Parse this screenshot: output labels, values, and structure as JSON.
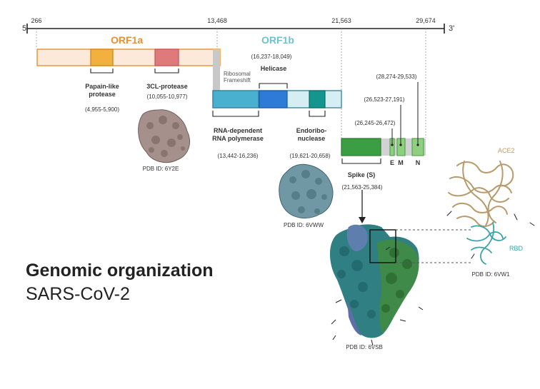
{
  "genome": {
    "five_prime": "5'",
    "three_prime": "3'",
    "ticks": [
      "266",
      "13,468",
      "21,563",
      "29,674"
    ]
  },
  "orf1a": {
    "label": "ORF1a",
    "color": "#e8912e",
    "fill": "#fde9da",
    "papain": {
      "name": "Papain-like protease",
      "name_line1": "Papain-like",
      "name_line2": "protease",
      "range": "(4,955-5,900)",
      "color": "#f2b13f"
    },
    "clpro": {
      "name": "3CL-protease",
      "range": "(10,055-10,977)",
      "color": "#e07a7a"
    },
    "pdb": "PDB ID: 6Y2E"
  },
  "orf1b": {
    "label": "ORF1b",
    "color": "#6ec2cf",
    "ribosomal_line1": "Ribosomal",
    "ribosomal_line2": "Frameshift",
    "helicase": {
      "name": "Helicase",
      "range": "(16,237-18,049)",
      "color": "#2d7bd6"
    },
    "rdrp": {
      "name_line1": "RNA-dependent",
      "name_line2": "RNA polymerase",
      "range": "(13,442-16,236)",
      "color": "#4ab0d0"
    },
    "endo": {
      "name_line1": "Endoribo-",
      "name_line2": "nuclease",
      "range": "(19,621-20,658)",
      "color": "#14968e"
    },
    "pdb": "PDB ID: 6VWW"
  },
  "structural": {
    "spike": {
      "name": "Spike (S)",
      "range": "(21,563-25,384)",
      "color": "#3c9e42"
    },
    "e": {
      "name": "E",
      "range": "(26,245-26,472)"
    },
    "m": {
      "name": "M",
      "range": "(26,523-27,191)"
    },
    "n": {
      "name": "N",
      "range": "(28,274-29,533)"
    },
    "pdb": "PDB ID: 6VSB"
  },
  "ace2": {
    "label": "ACE2",
    "rbd": "RBD",
    "pdb": "PDB ID: 6VW1",
    "ace2_color": "#b89b6c",
    "rbd_color": "#3ba3a7"
  },
  "title": {
    "line1": "Genomic organization",
    "line2": "SARS-CoV-2"
  }
}
